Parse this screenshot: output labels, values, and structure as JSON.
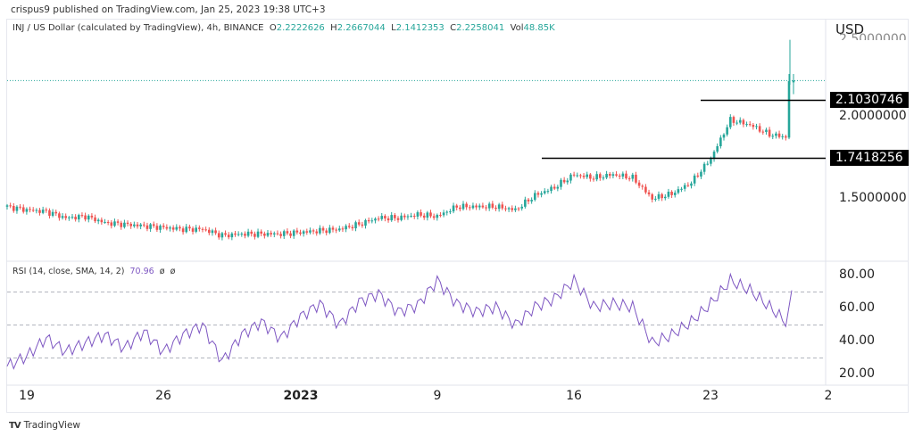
{
  "header": {
    "published": "crispus9 published on TradingView.com, Jan 25, 2023 19:38 UTC+3"
  },
  "legend": {
    "symbol": "INJ / US Dollar (calculated by TradingView), 4h, BINANCE",
    "o_label": "O",
    "o": "2.2222626",
    "h_label": "H",
    "h": "2.2667044",
    "l_label": "L",
    "l": "2.1412353",
    "c_label": "C",
    "c": "2.2258041",
    "vol_label": "Vol",
    "vol": "48.85K"
  },
  "price_axis": {
    "currency": "USD",
    "ticks": [
      "2.5000000",
      "2.0000000",
      "1.5000000"
    ]
  },
  "levels": {
    "resistance": "2.1030746",
    "support": "1.7418256"
  },
  "rsi": {
    "legend": "RSI (14, close, SMA, 14, 2)",
    "value": "70.96",
    "extra1": "ø",
    "extra2": "ø",
    "ticks": [
      "80.00",
      "60.00",
      "40.00",
      "20.00"
    ]
  },
  "time_axis": [
    "19",
    "26",
    "2023",
    "9",
    "16",
    "23",
    "2"
  ],
  "footer": {
    "brand": "TradingView"
  },
  "colors": {
    "up": "#26a69a",
    "down": "#ef5350",
    "rsi": "#7e57c2"
  },
  "chart_data": {
    "type": "candlestick",
    "interval": "4h",
    "daily_close_approx": [
      1.44,
      1.42,
      1.41,
      1.37,
      1.38,
      1.34,
      1.33,
      1.32,
      1.31,
      1.3,
      1.3,
      1.26,
      1.27,
      1.27,
      1.27,
      1.28,
      1.29,
      1.3,
      1.33,
      1.37,
      1.37,
      1.39,
      1.38,
      1.44,
      1.44,
      1.44,
      1.42,
      1.51,
      1.56,
      1.64,
      1.62,
      1.64,
      1.62,
      1.49,
      1.52,
      1.59,
      1.74,
      1.98,
      1.95,
      1.89,
      1.87,
      2.2258
    ],
    "rsi_daily_approx": [
      25,
      31,
      42,
      34,
      39,
      44,
      36,
      46,
      34,
      44,
      50,
      28,
      44,
      52,
      42,
      55,
      63,
      50,
      64,
      69,
      58,
      62,
      77,
      63,
      58,
      61,
      50,
      61,
      66,
      77,
      61,
      63,
      61,
      39,
      44,
      52,
      63,
      77,
      71,
      61,
      50,
      70.96
    ],
    "price_levels": [
      2.1030746,
      1.7418256
    ]
  }
}
